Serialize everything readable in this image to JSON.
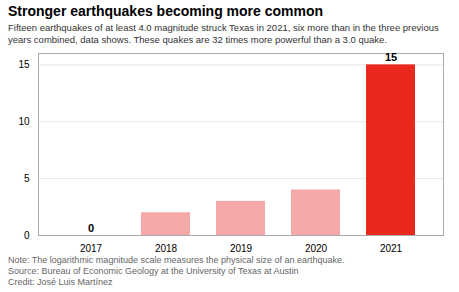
{
  "chart_data": {
    "type": "bar",
    "title": "Stronger earthquakes becoming more common",
    "subtitle": "Fifteen earthquakes of at least 4.0 magnitude struck Texas in 2021, six more than in the three previous years combined, data shows. These quakes are 32 times more powerful than a 3.0 quake.",
    "categories": [
      "2017",
      "2018",
      "2019",
      "2020",
      "2021"
    ],
    "values": [
      0,
      2,
      3,
      4,
      15
    ],
    "colors": [
      "#f4a9a8",
      "#f4a9a8",
      "#f4a9a8",
      "#f4a9a8",
      "#e8291c"
    ],
    "ylim": [
      0,
      16
    ],
    "yticks": [
      0,
      5,
      10,
      15
    ],
    "grid": true,
    "annotations": [
      {
        "category": "2017",
        "value": 0,
        "text": "0"
      },
      {
        "category": "2021",
        "value": 15,
        "text": "15"
      }
    ],
    "note": "Note: The logarithmic magnitude scale measures the physical size of an earthquake.",
    "source": "Source: Bureau of Economic Geology at the University of Texas at Austin",
    "credit": "Credit: José Luis Martínez"
  }
}
